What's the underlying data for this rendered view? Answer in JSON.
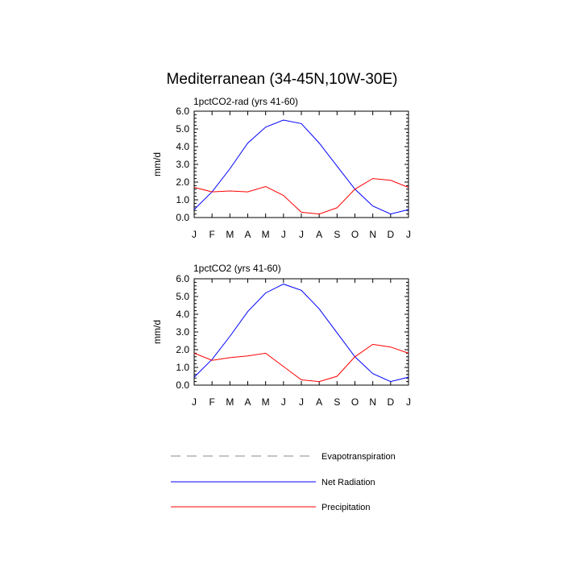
{
  "title": "Mediterranean (34-45N,10W-30E)",
  "chart_data": [
    {
      "type": "line",
      "subtitle": "1pctCO2-rad (yrs 41-60)",
      "ylabel": "mm/d",
      "ylim": [
        0,
        6
      ],
      "yticks": [
        "0.0",
        "1.0",
        "2.0",
        "3.0",
        "4.0",
        "5.0",
        "6.0"
      ],
      "categories": [
        "J",
        "F",
        "M",
        "A",
        "M",
        "J",
        "J",
        "A",
        "S",
        "O",
        "N",
        "D",
        "J"
      ],
      "series": [
        {
          "name": "Net Radiation",
          "color": "#0000ff",
          "values": [
            0.45,
            1.45,
            2.75,
            4.2,
            5.1,
            5.5,
            5.3,
            4.2,
            2.9,
            1.6,
            0.65,
            0.2,
            0.45
          ]
        },
        {
          "name": "Precipitation",
          "color": "#ff0000",
          "values": [
            1.7,
            1.45,
            1.5,
            1.45,
            1.75,
            1.25,
            0.3,
            0.2,
            0.55,
            1.6,
            2.2,
            2.1,
            1.7
          ]
        }
      ]
    },
    {
      "type": "line",
      "subtitle": "1pctCO2 (yrs 41-60)",
      "ylabel": "mm/d",
      "ylim": [
        0,
        6
      ],
      "yticks": [
        "0.0",
        "1.0",
        "2.0",
        "3.0",
        "4.0",
        "5.0",
        "6.0"
      ],
      "categories": [
        "J",
        "F",
        "M",
        "A",
        "M",
        "J",
        "J",
        "A",
        "S",
        "O",
        "N",
        "D",
        "J"
      ],
      "series": [
        {
          "name": "Net Radiation",
          "color": "#0000ff",
          "values": [
            0.45,
            1.45,
            2.75,
            4.15,
            5.2,
            5.7,
            5.35,
            4.3,
            2.95,
            1.6,
            0.65,
            0.2,
            0.45
          ]
        },
        {
          "name": "Precipitation",
          "color": "#ff0000",
          "values": [
            1.8,
            1.4,
            1.55,
            1.65,
            1.8,
            1.05,
            0.3,
            0.2,
            0.5,
            1.6,
            2.3,
            2.15,
            1.8
          ]
        }
      ]
    }
  ],
  "legend": [
    {
      "label": "Evapotranspiration",
      "color": "#888888",
      "style": "dashed"
    },
    {
      "label": "Net Radiation",
      "color": "#0000ff",
      "style": "solid"
    },
    {
      "label": "Precipitation",
      "color": "#ff0000",
      "style": "solid"
    }
  ]
}
